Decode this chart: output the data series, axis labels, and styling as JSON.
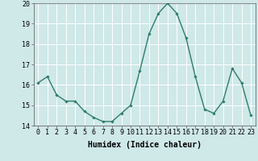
{
  "x": [
    0,
    1,
    2,
    3,
    4,
    5,
    6,
    7,
    8,
    9,
    10,
    11,
    12,
    13,
    14,
    15,
    16,
    17,
    18,
    19,
    20,
    21,
    22,
    23
  ],
  "y": [
    16.1,
    16.4,
    15.5,
    15.2,
    15.2,
    14.7,
    14.4,
    14.2,
    14.2,
    14.6,
    15.0,
    16.7,
    18.5,
    19.5,
    20.0,
    19.5,
    18.3,
    16.4,
    14.8,
    14.6,
    15.2,
    16.8,
    16.1,
    14.5
  ],
  "line_color": "#2d7d6e",
  "marker": "D",
  "marker_size": 1.8,
  "line_width": 1.0,
  "bg_color": "#cfe8e8",
  "grid_color": "#ffffff",
  "xlabel": "Humidex (Indice chaleur)",
  "xlabel_fontsize": 7,
  "tick_fontsize": 6,
  "ylim": [
    14,
    20
  ],
  "xlim": [
    -0.5,
    23.5
  ],
  "yticks": [
    14,
    15,
    16,
    17,
    18,
    19,
    20
  ],
  "xticks": [
    0,
    1,
    2,
    3,
    4,
    5,
    6,
    7,
    8,
    9,
    10,
    11,
    12,
    13,
    14,
    15,
    16,
    17,
    18,
    19,
    20,
    21,
    22,
    23
  ]
}
